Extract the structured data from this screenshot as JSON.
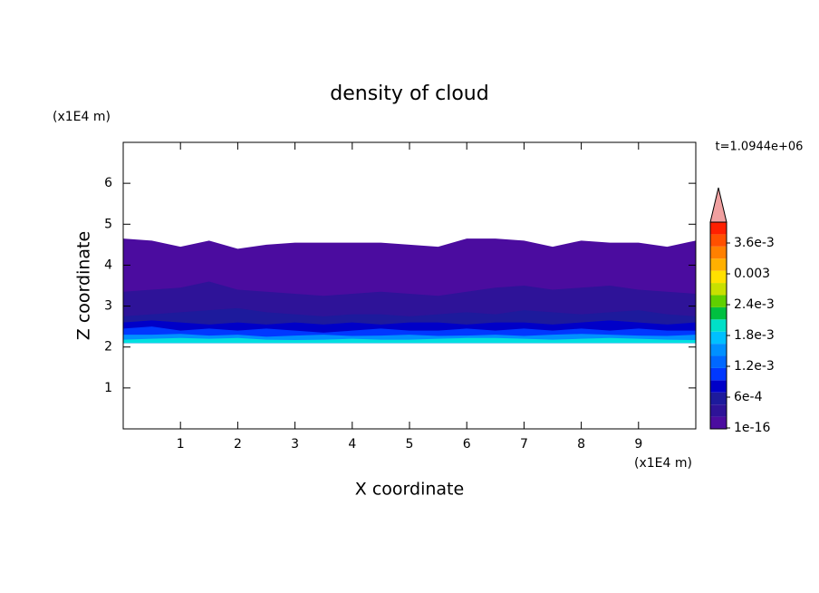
{
  "chart_data": {
    "type": "contour",
    "title": "density of cloud",
    "x_label": "X coordinate",
    "y_label": "Z coordinate",
    "x_unit": "(x1E4 m)",
    "y_unit": "(x1E4 m)",
    "time_label": "t=1.0944e+06",
    "xlim": [
      0,
      10
    ],
    "ylim": [
      0,
      7
    ],
    "xticks": [
      1,
      2,
      3,
      4,
      5,
      6,
      7,
      8,
      9
    ],
    "yticks": [
      1,
      2,
      3,
      4,
      5,
      6
    ],
    "base": 2.1,
    "bands": [
      {
        "color": "#4b0c9f",
        "x": [
          0,
          0.5,
          1,
          1.5,
          2,
          2.5,
          3,
          3.5,
          4,
          4.5,
          5,
          5.5,
          6,
          6.5,
          7,
          7.5,
          8,
          8.5,
          9,
          9.5,
          10
        ],
        "top": [
          4.65,
          4.6,
          4.45,
          4.6,
          4.4,
          4.5,
          4.55,
          4.55,
          4.55,
          4.55,
          4.5,
          4.45,
          4.65,
          4.65,
          4.6,
          4.45,
          4.6,
          4.55,
          4.55,
          4.45,
          4.6
        ]
      },
      {
        "color": "#2e1398",
        "x": [
          0,
          0.5,
          1,
          1.5,
          2,
          2.5,
          3,
          3.5,
          4,
          4.5,
          5,
          5.5,
          6,
          6.5,
          7,
          7.5,
          8,
          8.5,
          9,
          9.5,
          10
        ],
        "top": [
          3.35,
          3.4,
          3.45,
          3.6,
          3.4,
          3.35,
          3.3,
          3.25,
          3.3,
          3.35,
          3.3,
          3.25,
          3.35,
          3.45,
          3.5,
          3.4,
          3.45,
          3.5,
          3.4,
          3.35,
          3.3
        ]
      },
      {
        "color": "#1d1a9c",
        "x": [
          0,
          0.5,
          1,
          1.5,
          2,
          2.5,
          3,
          3.5,
          4,
          4.5,
          5,
          5.5,
          6,
          6.5,
          7,
          7.5,
          8,
          8.5,
          9,
          9.5,
          10
        ],
        "top": [
          2.75,
          2.8,
          2.85,
          2.9,
          2.95,
          2.85,
          2.8,
          2.75,
          2.8,
          2.8,
          2.75,
          2.8,
          2.85,
          2.8,
          2.9,
          2.85,
          2.8,
          2.85,
          2.9,
          2.8,
          2.75
        ]
      },
      {
        "color": "#0000c8",
        "x": [
          0,
          0.5,
          1,
          1.5,
          2,
          2.5,
          3,
          3.5,
          4,
          4.5,
          5,
          5.5,
          6,
          6.5,
          7,
          7.5,
          8,
          8.5,
          9,
          9.5,
          10
        ],
        "top": [
          2.6,
          2.65,
          2.6,
          2.55,
          2.6,
          2.55,
          2.6,
          2.55,
          2.6,
          2.55,
          2.6,
          2.6,
          2.55,
          2.6,
          2.6,
          2.55,
          2.6,
          2.65,
          2.6,
          2.55,
          2.6
        ]
      },
      {
        "color": "#0038ff",
        "x": [
          0,
          0.5,
          1,
          1.5,
          2,
          2.5,
          3,
          3.5,
          4,
          4.5,
          5,
          5.5,
          6,
          6.5,
          7,
          7.5,
          8,
          8.5,
          9,
          9.5,
          10
        ],
        "top": [
          2.45,
          2.5,
          2.4,
          2.45,
          2.4,
          2.45,
          2.4,
          2.35,
          2.4,
          2.45,
          2.4,
          2.4,
          2.45,
          2.4,
          2.45,
          2.4,
          2.45,
          2.4,
          2.45,
          2.4,
          2.4
        ]
      },
      {
        "color": "#0090ff",
        "x": [
          0,
          0.5,
          1,
          1.5,
          2,
          2.5,
          3,
          3.5,
          4,
          4.5,
          5,
          5.5,
          6,
          6.5,
          7,
          7.5,
          8,
          8.5,
          9,
          9.5,
          10
        ],
        "top": [
          2.3,
          2.3,
          2.32,
          2.28,
          2.3,
          2.25,
          2.28,
          2.3,
          2.27,
          2.28,
          2.3,
          2.27,
          2.28,
          2.3,
          2.27,
          2.3,
          2.32,
          2.3,
          2.28,
          2.27,
          2.3
        ]
      },
      {
        "color": "#00e0e0",
        "x": [
          0,
          0.5,
          1,
          1.5,
          2,
          2.5,
          3,
          3.5,
          4,
          4.5,
          5,
          5.5,
          6,
          6.5,
          7,
          7.5,
          8,
          8.5,
          9,
          9.5,
          10
        ],
        "top": [
          2.18,
          2.2,
          2.22,
          2.2,
          2.22,
          2.18,
          2.17,
          2.18,
          2.2,
          2.18,
          2.18,
          2.2,
          2.22,
          2.22,
          2.2,
          2.18,
          2.2,
          2.22,
          2.2,
          2.18,
          2.17
        ]
      }
    ],
    "colorbar": {
      "colors": [
        "#4b0c9f",
        "#2e1398",
        "#1d1a9c",
        "#0000c8",
        "#0038ff",
        "#0068ff",
        "#0090ff",
        "#00c0ff",
        "#00e0c8",
        "#00c040",
        "#60d000",
        "#c8e000",
        "#ffe000",
        "#ffb000",
        "#ff8000",
        "#ff5000",
        "#ff2000"
      ],
      "extend_color": "#f0a0a0",
      "levels": [
        1e-16,
        {
          "value": 0.0006,
          "label": "6e-4"
        },
        {
          "value": 0.0012,
          "label": "1.2e-3"
        },
        {
          "value": 0.0018,
          "label": "1.8e-3"
        },
        {
          "value": 0.0024,
          "label": "2.4e-3"
        },
        0.003,
        {
          "value": 0.0036,
          "label": "3.6e-3"
        }
      ]
    }
  }
}
